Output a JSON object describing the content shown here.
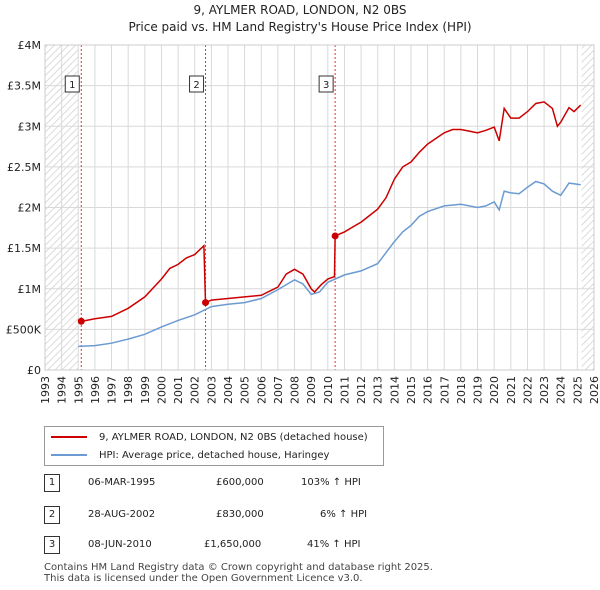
{
  "chart_data": {
    "type": "line",
    "title": "9, AYLMER ROAD, LONDON, N2 0BS",
    "subtitle": "Price paid vs. HM Land Registry's House Price Index (HPI)",
    "xlabel": "",
    "ylabel": "",
    "xlim": [
      1993,
      2026
    ],
    "ylim": [
      0,
      4000000
    ],
    "grid": true,
    "x_ticks": [
      "1993",
      "1994",
      "1995",
      "1996",
      "1997",
      "1998",
      "1999",
      "2000",
      "2001",
      "2002",
      "2003",
      "2004",
      "2005",
      "2006",
      "2007",
      "2008",
      "2009",
      "2010",
      "2011",
      "2012",
      "2013",
      "2014",
      "2015",
      "2016",
      "2017",
      "2018",
      "2019",
      "2020",
      "2021",
      "2022",
      "2023",
      "2024",
      "2025",
      "2026"
    ],
    "y_ticks": [
      {
        "value": 0,
        "label": "£0"
      },
      {
        "value": 500000,
        "label": "£500K"
      },
      {
        "value": 1000000,
        "label": "£1M"
      },
      {
        "value": 1500000,
        "label": "£1.5M"
      },
      {
        "value": 2000000,
        "label": "£2M"
      },
      {
        "value": 2500000,
        "label": "£2.5M"
      },
      {
        "value": 3000000,
        "label": "£3M"
      },
      {
        "value": 3500000,
        "label": "£3.5M"
      },
      {
        "value": 4000000,
        "label": "£4M"
      }
    ],
    "hatched_before": 1995.0,
    "hatched_after": 2025.25,
    "series": [
      {
        "name": "9, AYLMER ROAD, LONDON, N2 0BS (detached house)",
        "color": "#cc0000",
        "points": [
          [
            1995.18,
            600000
          ],
          [
            1995.5,
            610000
          ],
          [
            1996.0,
            630000
          ],
          [
            1997.0,
            660000
          ],
          [
            1998.0,
            760000
          ],
          [
            1999.0,
            900000
          ],
          [
            2000.0,
            1120000
          ],
          [
            2000.5,
            1250000
          ],
          [
            2001.0,
            1300000
          ],
          [
            2001.5,
            1380000
          ],
          [
            2002.0,
            1420000
          ],
          [
            2002.55,
            1530000
          ],
          [
            2002.65,
            830000
          ],
          [
            2003.0,
            860000
          ],
          [
            2004.0,
            880000
          ],
          [
            2005.0,
            900000
          ],
          [
            2006.0,
            920000
          ],
          [
            2007.0,
            1020000
          ],
          [
            2007.5,
            1180000
          ],
          [
            2008.0,
            1240000
          ],
          [
            2008.5,
            1180000
          ],
          [
            2009.0,
            1000000
          ],
          [
            2009.2,
            960000
          ],
          [
            2009.6,
            1050000
          ],
          [
            2010.0,
            1120000
          ],
          [
            2010.4,
            1150000
          ],
          [
            2010.44,
            1650000
          ],
          [
            2011.0,
            1700000
          ],
          [
            2011.5,
            1760000
          ],
          [
            2012.0,
            1820000
          ],
          [
            2012.5,
            1900000
          ],
          [
            2013.0,
            1980000
          ],
          [
            2013.5,
            2120000
          ],
          [
            2014.0,
            2350000
          ],
          [
            2014.5,
            2500000
          ],
          [
            2015.0,
            2560000
          ],
          [
            2015.5,
            2680000
          ],
          [
            2016.0,
            2780000
          ],
          [
            2016.5,
            2850000
          ],
          [
            2017.0,
            2920000
          ],
          [
            2017.5,
            2960000
          ],
          [
            2018.0,
            2960000
          ],
          [
            2018.5,
            2940000
          ],
          [
            2019.0,
            2920000
          ],
          [
            2019.5,
            2950000
          ],
          [
            2020.0,
            2990000
          ],
          [
            2020.3,
            2820000
          ],
          [
            2020.6,
            3220000
          ],
          [
            2021.0,
            3100000
          ],
          [
            2021.5,
            3100000
          ],
          [
            2022.0,
            3180000
          ],
          [
            2022.5,
            3280000
          ],
          [
            2023.0,
            3300000
          ],
          [
            2023.5,
            3220000
          ],
          [
            2023.8,
            3000000
          ],
          [
            2024.0,
            3050000
          ],
          [
            2024.5,
            3230000
          ],
          [
            2024.8,
            3180000
          ],
          [
            2025.2,
            3260000
          ]
        ]
      },
      {
        "name": "HPI: Average price, detached house, Haringey",
        "color": "#6b9bd2",
        "points": [
          [
            1995.0,
            290000
          ],
          [
            1996.0,
            300000
          ],
          [
            1997.0,
            330000
          ],
          [
            1998.0,
            380000
          ],
          [
            1999.0,
            440000
          ],
          [
            2000.0,
            530000
          ],
          [
            2001.0,
            610000
          ],
          [
            2002.0,
            680000
          ],
          [
            2003.0,
            780000
          ],
          [
            2004.0,
            810000
          ],
          [
            2005.0,
            830000
          ],
          [
            2006.0,
            880000
          ],
          [
            2007.0,
            990000
          ],
          [
            2008.0,
            1110000
          ],
          [
            2008.5,
            1060000
          ],
          [
            2009.0,
            930000
          ],
          [
            2009.5,
            960000
          ],
          [
            2010.0,
            1080000
          ],
          [
            2011.0,
            1170000
          ],
          [
            2012.0,
            1220000
          ],
          [
            2013.0,
            1310000
          ],
          [
            2014.0,
            1580000
          ],
          [
            2014.5,
            1700000
          ],
          [
            2015.0,
            1780000
          ],
          [
            2015.5,
            1890000
          ],
          [
            2016.0,
            1950000
          ],
          [
            2017.0,
            2020000
          ],
          [
            2018.0,
            2040000
          ],
          [
            2019.0,
            2000000
          ],
          [
            2019.5,
            2020000
          ],
          [
            2020.0,
            2070000
          ],
          [
            2020.3,
            1970000
          ],
          [
            2020.6,
            2200000
          ],
          [
            2021.0,
            2180000
          ],
          [
            2021.5,
            2170000
          ],
          [
            2022.0,
            2250000
          ],
          [
            2022.5,
            2320000
          ],
          [
            2023.0,
            2290000
          ],
          [
            2023.5,
            2200000
          ],
          [
            2024.0,
            2150000
          ],
          [
            2024.5,
            2300000
          ],
          [
            2025.2,
            2280000
          ]
        ]
      }
    ],
    "transactions": [
      {
        "marker": "1",
        "x": 1995.18,
        "y": 600000
      },
      {
        "marker": "2",
        "x": 2002.65,
        "y": 830000
      },
      {
        "marker": "3",
        "x": 2010.44,
        "y": 1650000
      }
    ],
    "annotations": [
      "1",
      "2",
      "3"
    ]
  },
  "legend": [
    {
      "label": "9, AYLMER ROAD, LONDON, N2 0BS (detached house)",
      "color": "#cc0000"
    },
    {
      "label": "HPI: Average price, detached house, Haringey",
      "color": "#6b9bd2"
    }
  ],
  "transactions_table": [
    {
      "marker": "1",
      "date": "06-MAR-1995",
      "price": "£600,000",
      "hpi": "103% ↑ HPI"
    },
    {
      "marker": "2",
      "date": "28-AUG-2002",
      "price": "£830,000",
      "hpi": "6% ↑ HPI"
    },
    {
      "marker": "3",
      "date": "08-JUN-2010",
      "price": "£1,650,000",
      "hpi": "41% ↑ HPI"
    }
  ],
  "footer": {
    "line1": "Contains HM Land Registry data © Crown copyright and database right 2025.",
    "line2": "This data is licensed under the Open Government Licence v3.0."
  }
}
